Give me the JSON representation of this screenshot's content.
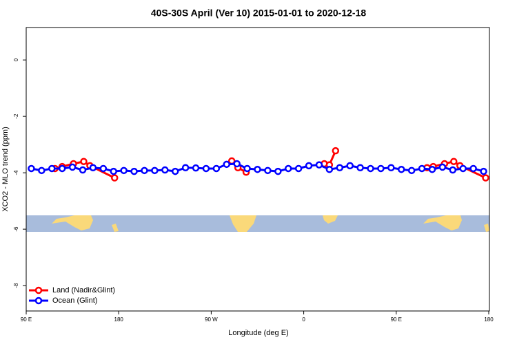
{
  "chart_data": {
    "type": "line",
    "title": "40S-30S April (Ver 10)   2015-01-01 to 2020-12-18",
    "x_label": "Longitude (deg E)",
    "y_label": "XCO2 - MLO trend (ppm)",
    "xlim": [
      90,
      540
    ],
    "ylim": [
      -8.9,
      1.15
    ],
    "xticks": [
      {
        "value": 90,
        "label": "90 E"
      },
      180,
      {
        "value": 270,
        "label": "90 W"
      },
      {
        "value": 360,
        "label": "0"
      },
      {
        "value": 450,
        "label": "90 E"
      },
      {
        "value": 540,
        "label": "180"
      }
    ],
    "yticks": [
      0,
      -2,
      -4,
      -6,
      -8
    ],
    "legend": "bottom-left",
    "series": [
      {
        "name": "Land (Nadir&Glint)",
        "color": "#ff0000",
        "x": [
          118,
          125,
          136,
          146,
          152,
          176,
          null,
          290,
          296,
          304,
          null,
          380,
          385,
          391,
          null,
          480,
          486,
          497,
          506,
          512,
          537
        ],
        "values": [
          -3.85,
          -3.78,
          -3.68,
          -3.6,
          -3.75,
          -4.18,
          null,
          -3.58,
          -3.82,
          -3.98,
          null,
          -3.68,
          -3.72,
          -3.22,
          null,
          -3.82,
          -3.78,
          -3.68,
          -3.6,
          -3.75,
          -4.18
        ]
      },
      {
        "name": "Ocean (Glint)",
        "color": "#0000ff",
        "x": [
          95,
          105,
          115,
          125,
          135,
          145,
          155,
          165,
          175,
          185,
          195,
          205,
          215,
          225,
          235,
          245,
          255,
          265,
          275,
          285,
          295,
          305,
          315,
          325,
          335,
          345,
          355,
          365,
          375,
          385,
          395,
          405,
          415,
          425,
          435,
          445,
          455,
          465,
          475,
          485,
          495,
          505,
          515,
          525,
          535
        ],
        "values": [
          -3.85,
          -3.92,
          -3.85,
          -3.85,
          -3.8,
          -3.9,
          -3.82,
          -3.85,
          -3.95,
          -3.92,
          -3.95,
          -3.92,
          -3.92,
          -3.9,
          -3.95,
          -3.82,
          -3.83,
          -3.85,
          -3.85,
          -3.7,
          -3.68,
          -3.85,
          -3.88,
          -3.92,
          -3.95,
          -3.85,
          -3.85,
          -3.75,
          -3.72,
          -3.88,
          -3.82,
          -3.75,
          -3.82,
          -3.85,
          -3.85,
          -3.82,
          -3.88,
          -3.92,
          -3.85,
          -3.88,
          -3.8,
          -3.9,
          -3.85,
          -3.85,
          -3.95
        ]
      }
    ]
  }
}
